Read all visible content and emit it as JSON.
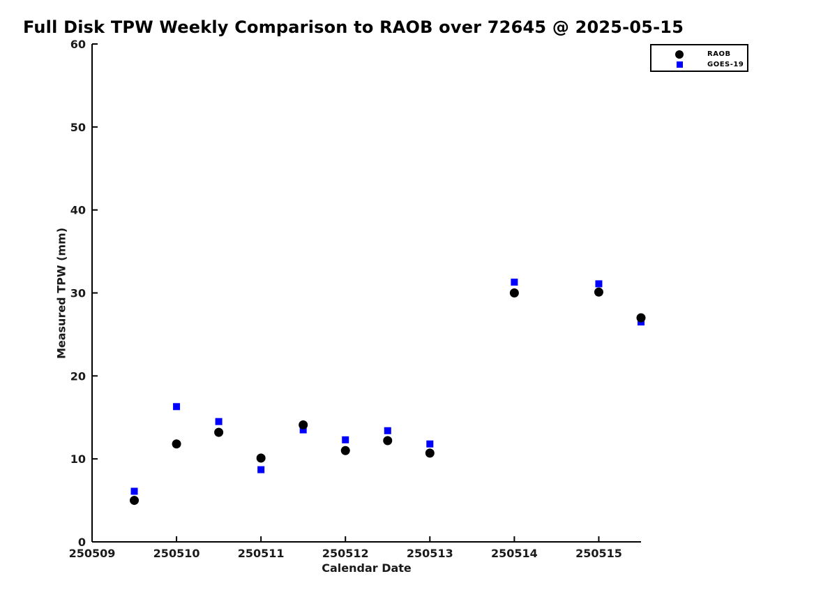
{
  "figure": {
    "background": "#ffffff",
    "text_color": "#1a1a1a",
    "axis_color": "#000000"
  },
  "chart_data": {
    "type": "scatter",
    "title": "Full Disk TPW Weekly Comparison to RAOB over 72645 @ 2025-05-15",
    "xlabel": "Calendar Date",
    "ylabel": "Measured TPW (mm)",
    "xlim": [
      250509,
      250515.5
    ],
    "ylim": [
      0,
      60
    ],
    "grid": false,
    "tick_direction": "in",
    "xticks": [
      {
        "value": 250509,
        "label": "250509"
      },
      {
        "value": 250510,
        "label": "250510"
      },
      {
        "value": 250511,
        "label": "250511"
      },
      {
        "value": 250512,
        "label": "250512"
      },
      {
        "value": 250513,
        "label": "250513"
      },
      {
        "value": 250514,
        "label": "250514"
      },
      {
        "value": 250515,
        "label": "250515"
      }
    ],
    "yticks": [
      {
        "value": 0,
        "label": "0"
      },
      {
        "value": 10,
        "label": "10"
      },
      {
        "value": 20,
        "label": "20"
      },
      {
        "value": 30,
        "label": "30"
      },
      {
        "value": 40,
        "label": "40"
      },
      {
        "value": 50,
        "label": "50"
      },
      {
        "value": 60,
        "label": "60"
      }
    ],
    "x": [
      250509.5,
      250510,
      250510.5,
      250511,
      250511.5,
      250512,
      250512.5,
      250513,
      250514,
      250515,
      250515.5
    ],
    "series": [
      {
        "name": "RAOB",
        "marker": "circle",
        "color": "#000000",
        "marker_size": 13,
        "values": [
          5.0,
          11.8,
          13.2,
          10.1,
          14.1,
          11.0,
          12.2,
          10.7,
          30.0,
          30.1,
          27.0
        ]
      },
      {
        "name": "GOES-19",
        "marker": "square",
        "color": "#0000ff",
        "marker_size": 10,
        "values": [
          6.1,
          16.3,
          14.5,
          8.7,
          13.5,
          12.3,
          13.4,
          11.8,
          31.3,
          31.1,
          26.5
        ]
      }
    ],
    "legend": {
      "position": "upper-right",
      "entries": [
        "RAOB",
        "GOES-19"
      ]
    }
  }
}
